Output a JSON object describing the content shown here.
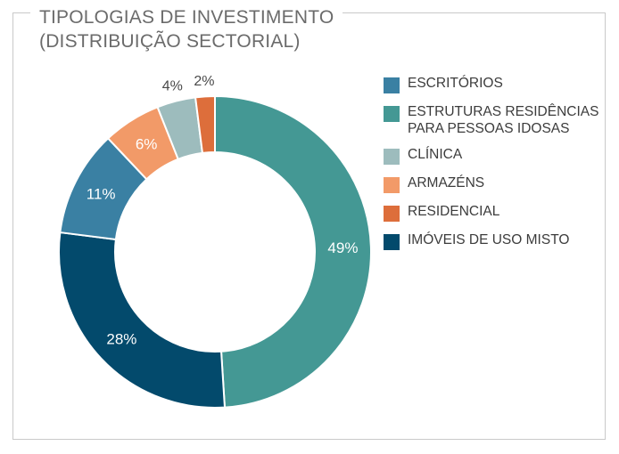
{
  "title": {
    "line1": "TIPOLOGIAS DE INVESTIMENTO",
    "line2": "(DISTRIBUIÇÃO SECTORIAL)"
  },
  "chart_data": {
    "type": "pie",
    "title": "TIPOLOGIAS DE INVESTIMENTO (DISTRIBUIÇÃO SECTORIAL)",
    "donut": true,
    "start_angle_deg": -90,
    "direction": "clockwise",
    "legend_position": "right",
    "slices": [
      {
        "label": "ESTRUTURAS RESIDÊNCIAS\nPARA PESSOAS IDOSAS",
        "value": 49,
        "display": "49%",
        "color": "#449894",
        "label_placement": "inside"
      },
      {
        "label": "IMÓVEIS DE USO MISTO",
        "value": 28,
        "display": "28%",
        "color": "#034a6c",
        "label_placement": "inside"
      },
      {
        "label": "ESCRITÓRIOS",
        "value": 11,
        "display": "11%",
        "color": "#3a80a3",
        "label_placement": "inside"
      },
      {
        "label": "ARMAZÉNS",
        "value": 6,
        "display": "6%",
        "color": "#f29a68",
        "label_placement": "inside"
      },
      {
        "label": "CLÍNICA",
        "value": 4,
        "display": "4%",
        "color": "#9dbcbd",
        "label_placement": "outside"
      },
      {
        "label": "RESIDENCIAL",
        "value": 2,
        "display": "2%",
        "color": "#dd6e3b",
        "label_placement": "outside"
      }
    ]
  },
  "legend": {
    "items": [
      {
        "label": "ESCRITÓRIOS",
        "color": "#3a80a3"
      },
      {
        "label": "ESTRUTURAS RESIDÊNCIAS\nPARA PESSOAS IDOSAS",
        "color": "#449894"
      },
      {
        "label": "CLÍNICA",
        "color": "#9dbcbd"
      },
      {
        "label": "ARMAZÉNS",
        "color": "#f29a68"
      },
      {
        "label": "RESIDENCIAL",
        "color": "#dd6e3b"
      },
      {
        "label": "IMÓVEIS DE USO MISTO",
        "color": "#034a6c"
      }
    ]
  }
}
